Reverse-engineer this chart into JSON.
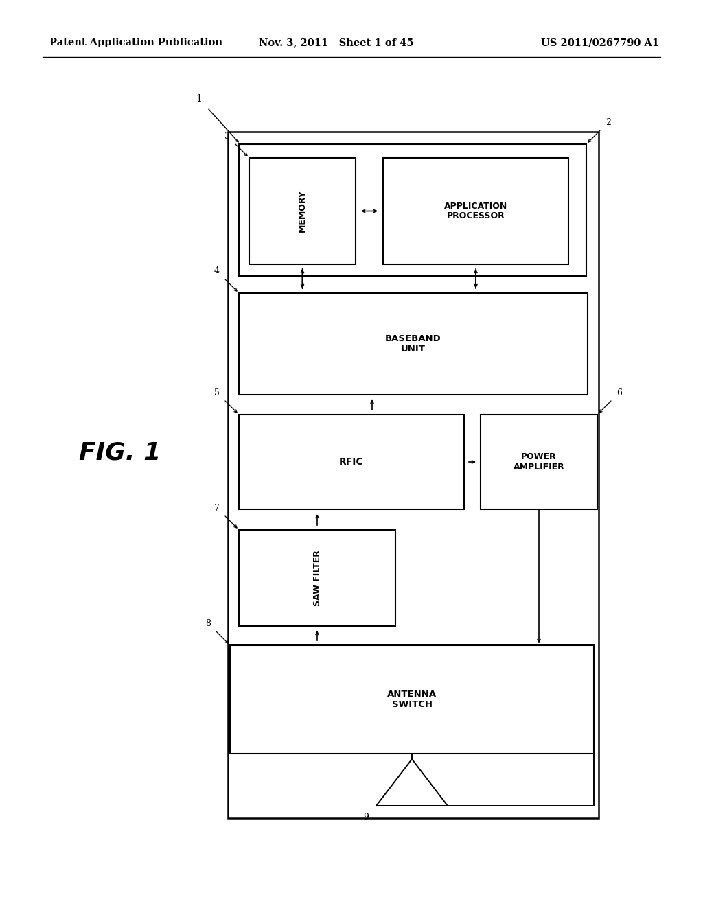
{
  "bg_color": "#ffffff",
  "header_left": "Patent Application Publication",
  "header_mid": "Nov. 3, 2011   Sheet 1 of 45",
  "header_right": "US 2011/0267790 A1",
  "fig_label": "FIG. 1",
  "header_fontsize": 10.5,
  "label_fontsize": 9,
  "block_label_fontsize": 9,
  "fig1_fontsize": 26
}
